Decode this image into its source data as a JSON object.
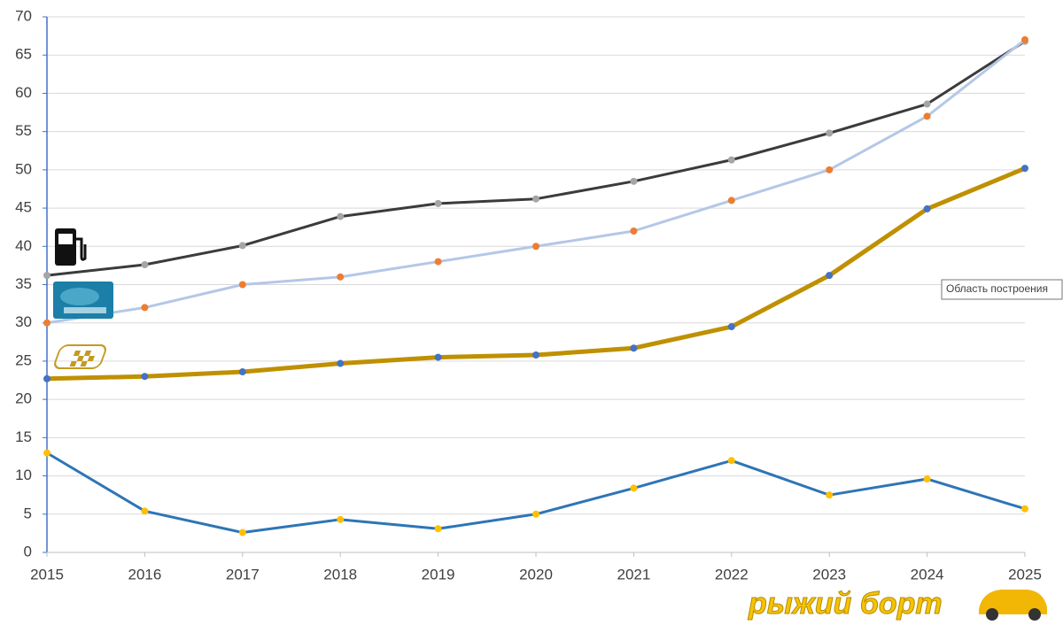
{
  "chart_data": {
    "type": "line",
    "x": [
      2015,
      2016,
      2017,
      2018,
      2019,
      2020,
      2021,
      2022,
      2023,
      2024,
      2025
    ],
    "xlim": [
      2015,
      2025
    ],
    "xticks": [
      2015,
      2016,
      2017,
      2018,
      2019,
      2020,
      2021,
      2022,
      2023,
      2024,
      2025
    ],
    "ylim": [
      0,
      70
    ],
    "yticks": [
      0,
      5,
      10,
      15,
      20,
      25,
      30,
      35,
      40,
      45,
      50,
      55,
      60,
      65,
      70
    ],
    "grid": true,
    "series": [
      {
        "color": "#3b3b3b",
        "marker_color": "#a5a5a5",
        "width": 3,
        "values": [
          36.2,
          37.6,
          40.1,
          43.9,
          45.6,
          46.2,
          48.5,
          51.3,
          54.8,
          58.6,
          66.8
        ]
      },
      {
        "color": "#b4c7e7",
        "marker_color": "#ed7d31",
        "width": 3,
        "values": [
          30,
          32,
          35,
          36,
          38,
          40,
          42,
          46,
          50,
          57,
          67
        ]
      },
      {
        "color": "#bf9000",
        "marker_color": "#4472c4",
        "width": 5,
        "values": [
          22.7,
          23.0,
          23.6,
          24.7,
          25.5,
          25.8,
          26.7,
          29.5,
          36.2,
          44.9,
          50.2
        ]
      },
      {
        "color": "#2e75b6",
        "marker_color": "#ffc000",
        "width": 3,
        "values": [
          13.0,
          5.4,
          2.6,
          4.3,
          3.1,
          5.0,
          8.4,
          12.0,
          7.5,
          9.6,
          5.7
        ]
      }
    ],
    "tooltip": "Область построения",
    "watermark": "рыжий борт"
  }
}
